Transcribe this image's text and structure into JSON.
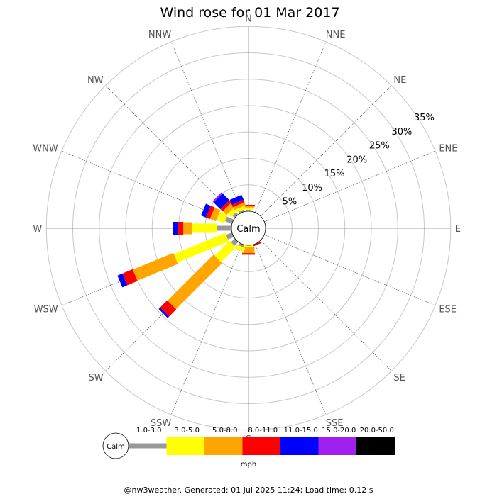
{
  "chart_data": {
    "type": "windrose",
    "title": "Wind rose for 01 Mar 2017",
    "directions": [
      "N",
      "NNE",
      "NE",
      "ENE",
      "E",
      "ESE",
      "SE",
      "SSE",
      "S",
      "SSW",
      "SW",
      "WSW",
      "W",
      "WNW",
      "NW",
      "NNW"
    ],
    "ring_labels": [
      "5%",
      "10%",
      "15%",
      "20%",
      "25%",
      "30%",
      "35%"
    ],
    "ring_values": [
      5,
      10,
      15,
      20,
      25,
      30,
      35
    ],
    "calm_label": "Calm",
    "unit_label": "mph",
    "speed_bins": [
      {
        "label": "1.0-3.0",
        "color": "#999999"
      },
      {
        "label": "3.0-5.0",
        "color": "#ffff00"
      },
      {
        "label": "5.0-8.0",
        "color": "#ffa500"
      },
      {
        "label": "8.0-11.0",
        "color": "#ff0000"
      },
      {
        "label": "11.0-15.0",
        "color": "#0000ff"
      },
      {
        "label": "15.0-20.0",
        "color": "#a020f0"
      },
      {
        "label": "20.0-50.0",
        "color": "#000000"
      }
    ],
    "petals": [
      {
        "direction": "N",
        "values": [
          0.3,
          0.4,
          0.3,
          0.2,
          0,
          0,
          0
        ]
      },
      {
        "direction": "NNE",
        "values": [
          0,
          0,
          0,
          0,
          0,
          0,
          0
        ]
      },
      {
        "direction": "NE",
        "values": [
          0,
          0,
          0,
          0,
          0,
          0,
          0
        ]
      },
      {
        "direction": "ENE",
        "values": [
          0,
          0,
          0,
          0,
          0,
          0,
          0
        ]
      },
      {
        "direction": "E",
        "values": [
          0,
          0,
          0,
          0,
          0,
          0,
          0
        ]
      },
      {
        "direction": "ESE",
        "values": [
          0,
          0,
          0,
          0,
          0,
          0,
          0
        ]
      },
      {
        "direction": "SE",
        "values": [
          0,
          0,
          0,
          0,
          0,
          0,
          0
        ]
      },
      {
        "direction": "SSE",
        "values": [
          0,
          0,
          0,
          0.3,
          0,
          0,
          0
        ]
      },
      {
        "direction": "S",
        "values": [
          0,
          0.3,
          1.2,
          0.3,
          0,
          0,
          0
        ]
      },
      {
        "direction": "SSW",
        "values": [
          0.5,
          0.8,
          0,
          0,
          0,
          0,
          0
        ]
      },
      {
        "direction": "SW",
        "values": [
          1.0,
          4.0,
          12.3,
          1.9,
          0.4,
          0,
          0
        ]
      },
      {
        "direction": "WSW",
        "values": [
          1.2,
          10.5,
          8.3,
          2.1,
          1.0,
          0,
          0
        ]
      },
      {
        "direction": "W",
        "values": [
          2.8,
          4.6,
          1.7,
          1.0,
          1.0,
          0,
          0
        ]
      },
      {
        "direction": "WNW",
        "values": [
          1.4,
          1.6,
          1.2,
          0.8,
          1.0,
          0,
          0
        ]
      },
      {
        "direction": "NW",
        "values": [
          0.6,
          0.9,
          1.0,
          0.6,
          1.8,
          0.3,
          0
        ]
      },
      {
        "direction": "NNW",
        "values": [
          0.4,
          0.6,
          0.6,
          0.5,
          1.0,
          0,
          0
        ]
      }
    ],
    "footer": "@nw3weather. Generated: 01 Jul 2025 11:24; Load time: 0.12 s"
  }
}
